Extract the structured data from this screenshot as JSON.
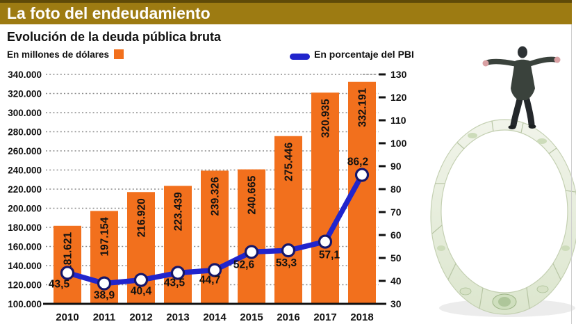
{
  "header": {
    "title": "La foto del endeudamiento"
  },
  "chart": {
    "subtitle": "Evolución de la deuda pública bruta",
    "legend_bars": "En millones de dólares",
    "legend_line": "En porcentaje del PBI"
  },
  "colors": {
    "title_bar": "#9d7b12",
    "bar": "#f2701d",
    "bar_label": "#7b2010",
    "line": "#2125cc",
    "marker_ring": "#14166a",
    "grid": "#8c8c8c",
    "axis_text": "#111111"
  },
  "chart_data": {
    "type": "bar",
    "title": "Evolución de la deuda pública bruta",
    "categories": [
      "2010",
      "2011",
      "2012",
      "2013",
      "2014",
      "2015",
      "2016",
      "2017",
      "2018"
    ],
    "series": [
      {
        "name": "En millones de dólares",
        "type": "bar",
        "axis": "left",
        "values": [
          181621,
          197154,
          216920,
          223439,
          239326,
          240665,
          275446,
          320935,
          332191
        ],
        "labels": [
          "181.621",
          "197.154",
          "216.920",
          "223.439",
          "239.326",
          "240.665",
          "275.446",
          "320.935",
          "332.191"
        ]
      },
      {
        "name": "En porcentaje del PBI",
        "type": "line",
        "axis": "right",
        "values": [
          43.5,
          38.9,
          40.4,
          43.5,
          44.7,
          52.6,
          53.3,
          57.1,
          86.2
        ],
        "labels": [
          "43,5",
          "38,9",
          "40,4",
          "43,5",
          "44,7",
          "52,6",
          "53,3",
          "57,1",
          "86,2"
        ]
      }
    ],
    "left_axis": {
      "min": 100000,
      "max": 340000,
      "step": 20000,
      "tick_labels": [
        "340.000",
        "320.000",
        "300.000",
        "280.000",
        "260.000",
        "240.000",
        "220.000",
        "200.000",
        "180.000",
        "160.000",
        "140.000",
        "120.000",
        "100.000"
      ]
    },
    "right_axis": {
      "min": 30,
      "max": 130,
      "step": 10,
      "tick_labels": [
        "130",
        "120",
        "110",
        "100",
        "90",
        "80",
        "70",
        "60",
        "50",
        "40",
        "30"
      ]
    },
    "grid": "dotted horizontal",
    "legend_position": "top"
  },
  "illustration": {
    "name": "man-balancing-on-dollar-ring"
  }
}
